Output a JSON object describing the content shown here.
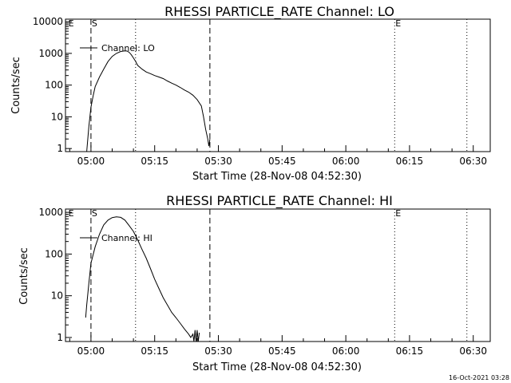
{
  "footer": {
    "timestamp": "16-Oct-2021 03:28"
  },
  "chart_data": [
    {
      "type": "line",
      "title": "RHESSI PARTICLE_RATE Channel: LO",
      "xlabel": "Start Time (28-Nov-08 04:52:30)",
      "ylabel": "Counts/sec",
      "yscale": "log",
      "xlim": [
        "04:54:00",
        "06:34:00"
      ],
      "ylim": [
        0.8,
        12000
      ],
      "x_ticks": [
        "05:00",
        "05:15",
        "05:30",
        "05:45",
        "06:00",
        "06:15",
        "06:30"
      ],
      "y_ticks": [
        "1",
        "10",
        "100",
        "1000",
        "10000"
      ],
      "legend": {
        "position": "top-left",
        "entries": [
          "Channel: LO"
        ]
      },
      "markers": [
        {
          "label": "E",
          "time": "04:54:30",
          "style": "none"
        },
        {
          "label": "S",
          "time": "05:00:00",
          "style": "dashed"
        },
        {
          "label": "",
          "time": "05:10:30",
          "style": "dotted"
        },
        {
          "label": "",
          "time": "05:28:00",
          "style": "dashed"
        },
        {
          "label": "E",
          "time": "06:11:30",
          "style": "dotted"
        },
        {
          "label": "",
          "time": "06:28:30",
          "style": "dotted"
        }
      ],
      "series": [
        {
          "name": "Channel: LO",
          "x": [
            "04:59:00",
            "04:59:30",
            "05:00:00",
            "05:00:30",
            "05:01:00",
            "05:02:00",
            "05:03:00",
            "05:04:00",
            "05:05:00",
            "05:06:00",
            "05:07:00",
            "05:08:00",
            "05:08:30",
            "05:09:00",
            "05:09:30",
            "05:10:00",
            "05:10:30",
            "05:11:00",
            "05:12:00",
            "05:13:00",
            "05:14:00",
            "05:15:00",
            "05:16:00",
            "05:17:00",
            "05:18:00",
            "05:19:00",
            "05:20:00",
            "05:21:00",
            "05:22:00",
            "05:23:00",
            "05:24:00",
            "05:25:00",
            "05:26:00",
            "05:26:30",
            "05:27:00",
            "05:27:30",
            "05:27:45",
            "05:28:00"
          ],
          "y": [
            0.8,
            5,
            20,
            45,
            90,
            180,
            320,
            550,
            800,
            1000,
            1150,
            1200,
            1180,
            1080,
            900,
            720,
            560,
            420,
            320,
            260,
            230,
            200,
            180,
            160,
            135,
            115,
            100,
            85,
            70,
            60,
            48,
            35,
            22,
            10,
            4,
            2,
            1.2,
            2
          ]
        }
      ]
    },
    {
      "type": "line",
      "title": "RHESSI PARTICLE_RATE Channel: HI",
      "xlabel": "Start Time (28-Nov-08 04:52:30)",
      "ylabel": "Counts/sec",
      "yscale": "log",
      "xlim": [
        "04:54:00",
        "06:34:00"
      ],
      "ylim": [
        0.8,
        1200
      ],
      "x_ticks": [
        "05:00",
        "05:15",
        "05:30",
        "05:45",
        "06:00",
        "06:15",
        "06:30"
      ],
      "y_ticks": [
        "1",
        "10",
        "100",
        "1000"
      ],
      "legend": {
        "position": "top-left",
        "entries": [
          "Channel: HI"
        ]
      },
      "markers": [
        {
          "label": "E",
          "time": "04:54:30",
          "style": "none"
        },
        {
          "label": "S",
          "time": "05:00:00",
          "style": "dashed"
        },
        {
          "label": "",
          "time": "05:10:30",
          "style": "dotted"
        },
        {
          "label": "",
          "time": "05:28:00",
          "style": "dashed"
        },
        {
          "label": "E",
          "time": "06:11:30",
          "style": "dotted"
        },
        {
          "label": "",
          "time": "06:28:30",
          "style": "dotted"
        }
      ],
      "series": [
        {
          "name": "Channel: HI",
          "x": [
            "04:58:45",
            "04:59:00",
            "04:59:30",
            "05:00:00",
            "05:01:00",
            "05:02:00",
            "05:03:00",
            "05:04:00",
            "05:05:00",
            "05:06:00",
            "05:07:00",
            "05:08:00",
            "05:09:00",
            "05:10:00",
            "05:11:00",
            "05:12:00",
            "05:13:00",
            "05:14:00",
            "05:15:00",
            "05:16:00",
            "05:17:00",
            "05:18:00",
            "05:19:00",
            "05:20:00",
            "05:21:00",
            "05:22:00",
            "05:23:00",
            "05:23:30",
            "05:24:00",
            "05:24:15",
            "05:24:30",
            "05:24:45",
            "05:25:00",
            "05:25:15",
            "05:25:30"
          ],
          "y": [
            3,
            6,
            20,
            60,
            150,
            300,
            500,
            650,
            750,
            780,
            760,
            650,
            480,
            350,
            220,
            130,
            80,
            45,
            25,
            15,
            9,
            6,
            4,
            3,
            2.2,
            1.6,
            1.2,
            1.0,
            1.2,
            0.8,
            1.5,
            0.8,
            1.5,
            0.8,
            1.3
          ]
        }
      ]
    }
  ]
}
